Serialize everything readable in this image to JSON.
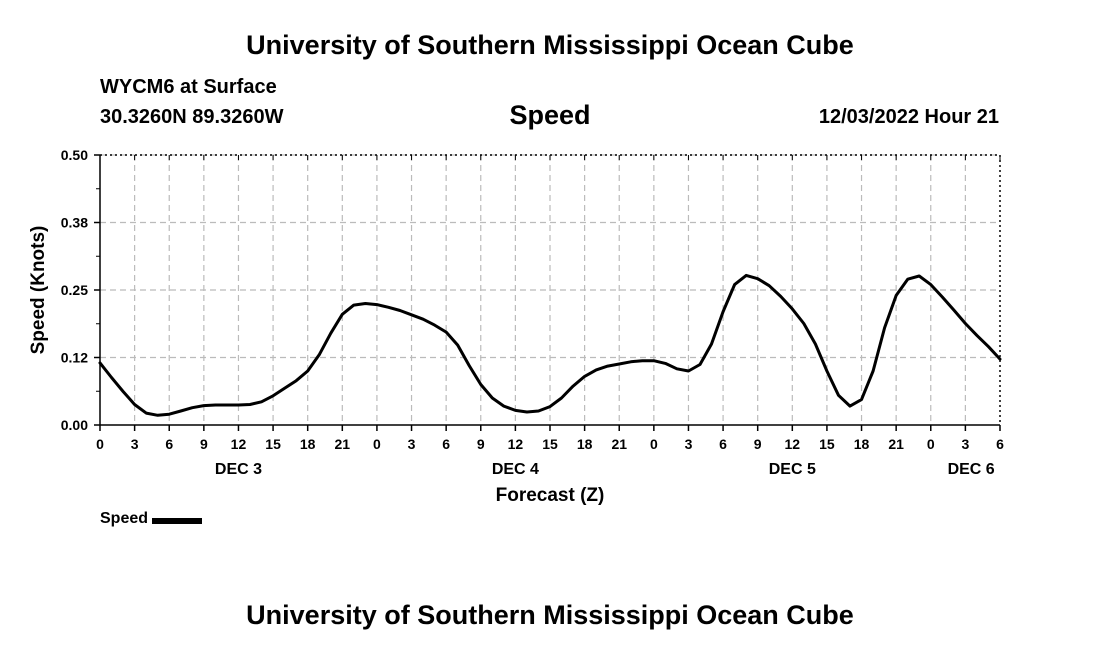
{
  "header": {
    "title": "University of Southern Mississippi Ocean Cube",
    "station": "WYCM6 at Surface",
    "coords": "30.3260N  89.3260W",
    "variable": "Speed",
    "datetime": "12/03/2022 Hour 21"
  },
  "footer": {
    "title": "University of Southern Mississippi Ocean Cube"
  },
  "chart_data": {
    "type": "line",
    "ylabel": "Speed (Knots)",
    "xlabel": "Forecast (Z)",
    "ylim": [
      0,
      0.5
    ],
    "xlim": [
      0,
      78
    ],
    "yticks": [
      0.0,
      0.125,
      0.25,
      0.375,
      0.5
    ],
    "ytick_labels": [
      "0.00",
      "0.12",
      "0.25",
      "0.38",
      "0.50"
    ],
    "xtick_labels": [
      "0",
      "3",
      "6",
      "9",
      "12",
      "15",
      "18",
      "21",
      "0",
      "3",
      "6",
      "9",
      "12",
      "15",
      "18",
      "21",
      "0",
      "3",
      "6",
      "9",
      "12",
      "15",
      "18",
      "21",
      "0",
      "3",
      "6"
    ],
    "day_labels": [
      {
        "label": "DEC 3",
        "x": 12
      },
      {
        "label": "DEC 4",
        "x": 36
      },
      {
        "label": "DEC 5",
        "x": 60
      },
      {
        "label": "DEC 6",
        "x": 75.5
      }
    ],
    "grid": true,
    "legend": "bottom-left",
    "colors": {
      "line": "#000000",
      "grid": "#bbbbbb"
    },
    "series": [
      {
        "name": "Speed",
        "x": [
          0,
          1,
          2,
          3,
          4,
          5,
          6,
          7,
          8,
          9,
          10,
          11,
          12,
          13,
          14,
          15,
          16,
          17,
          18,
          19,
          20,
          21,
          22,
          23,
          24,
          25,
          26,
          27,
          28,
          29,
          30,
          31,
          32,
          33,
          34,
          35,
          36,
          37,
          38,
          39,
          40,
          41,
          42,
          43,
          44,
          45,
          46,
          47,
          48,
          49,
          50,
          51,
          52,
          53,
          54,
          55,
          56,
          57,
          58,
          59,
          60,
          61,
          62,
          63,
          64,
          65,
          66,
          67,
          68,
          69,
          70,
          71,
          72,
          73,
          74,
          75,
          76,
          77,
          78
        ],
        "values": [
          0.115,
          0.088,
          0.062,
          0.038,
          0.022,
          0.018,
          0.02,
          0.026,
          0.032,
          0.036,
          0.037,
          0.037,
          0.037,
          0.038,
          0.043,
          0.054,
          0.068,
          0.082,
          0.1,
          0.13,
          0.17,
          0.205,
          0.222,
          0.225,
          0.223,
          0.218,
          0.212,
          0.204,
          0.196,
          0.185,
          0.172,
          0.148,
          0.11,
          0.075,
          0.05,
          0.035,
          0.027,
          0.024,
          0.026,
          0.034,
          0.05,
          0.072,
          0.09,
          0.102,
          0.109,
          0.113,
          0.117,
          0.119,
          0.119,
          0.114,
          0.104,
          0.1,
          0.112,
          0.15,
          0.21,
          0.26,
          0.277,
          0.271,
          0.258,
          0.238,
          0.215,
          0.188,
          0.15,
          0.1,
          0.055,
          0.035,
          0.047,
          0.1,
          0.18,
          0.24,
          0.27,
          0.276,
          0.26,
          0.237,
          0.213,
          0.188,
          0.166,
          0.145,
          0.122
        ]
      }
    ]
  },
  "legend": {
    "label": "Speed"
  }
}
